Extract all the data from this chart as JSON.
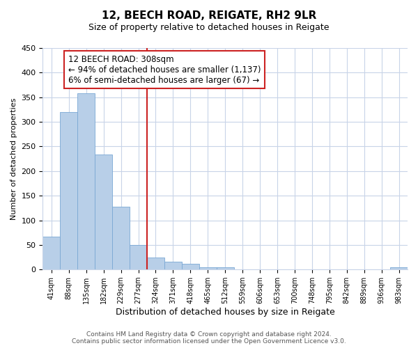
{
  "title": "12, BEECH ROAD, REIGATE, RH2 9LR",
  "subtitle": "Size of property relative to detached houses in Reigate",
  "xlabel": "Distribution of detached houses by size in Reigate",
  "ylabel": "Number of detached properties",
  "bar_color": "#b8cfe8",
  "bar_edge_color": "#7aa8d4",
  "highlight_color": "#cc2222",
  "bar_values": [
    67,
    320,
    358,
    234,
    127,
    50,
    25,
    16,
    12,
    5,
    4,
    1,
    0,
    0,
    0,
    1,
    0,
    0,
    1,
    0,
    5
  ],
  "bar_labels": [
    "41sqm",
    "88sqm",
    "135sqm",
    "182sqm",
    "229sqm",
    "277sqm",
    "324sqm",
    "371sqm",
    "418sqm",
    "465sqm",
    "512sqm",
    "559sqm",
    "606sqm",
    "653sqm",
    "700sqm",
    "748sqm",
    "795sqm",
    "842sqm",
    "889sqm",
    "936sqm",
    "983sqm"
  ],
  "ylim": [
    0,
    450
  ],
  "yticks": [
    0,
    50,
    100,
    150,
    200,
    250,
    300,
    350,
    400,
    450
  ],
  "annotation_title": "12 BEECH ROAD: 308sqm",
  "annotation_line1": "← 94% of detached houses are smaller (1,137)",
  "annotation_line2": "6% of semi-detached houses are larger (67) →",
  "redline_x": 5.5,
  "footer_line1": "Contains HM Land Registry data © Crown copyright and database right 2024.",
  "footer_line2": "Contains public sector information licensed under the Open Government Licence v3.0.",
  "background_color": "#ffffff",
  "grid_color": "#c8d4e8"
}
